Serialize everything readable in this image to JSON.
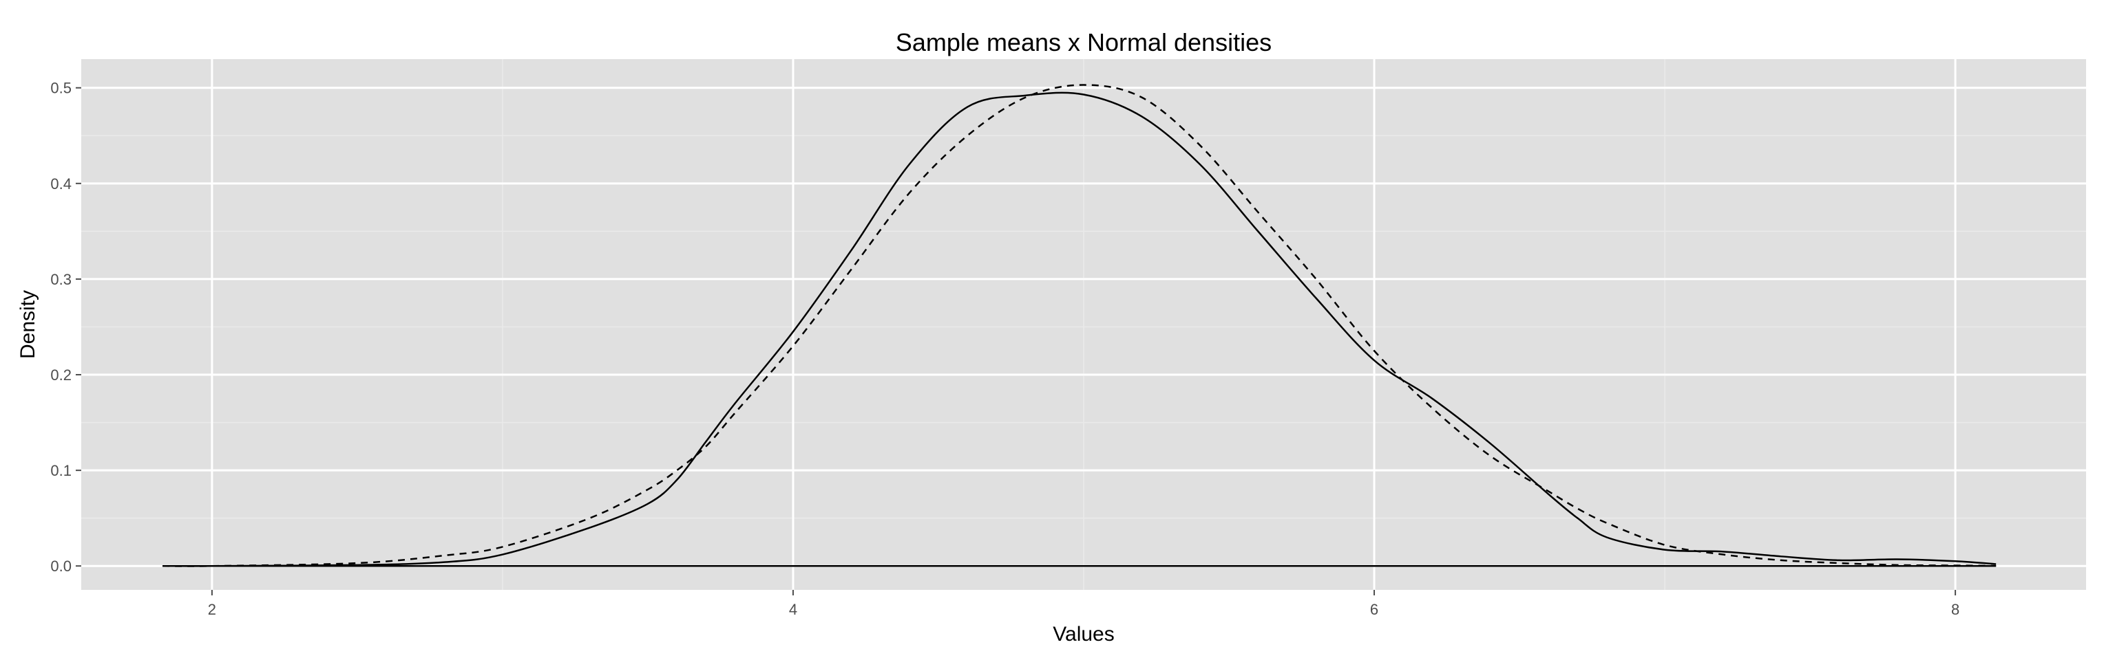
{
  "chart_data": {
    "type": "line",
    "title": "Sample means x Normal densities",
    "xlabel": "Values",
    "ylabel": "Density",
    "xlim": [
      1.55,
      8.45
    ],
    "ylim": [
      -0.025,
      0.53
    ],
    "x_ticks": [
      2,
      4,
      6,
      8
    ],
    "y_ticks": [
      0.0,
      0.1,
      0.2,
      0.3,
      0.4,
      0.5
    ],
    "y_tick_labels": [
      "0.0",
      "0.1",
      "0.2",
      "0.3",
      "0.4",
      "0.5"
    ],
    "grid": true,
    "background": "#e0e0e0",
    "series": [
      {
        "style": "solid",
        "color": "#000000",
        "x": [
          1.83,
          2.0,
          2.5,
          2.8,
          3.0,
          3.3,
          3.5,
          3.6,
          3.7,
          3.8,
          4.0,
          4.2,
          4.4,
          4.6,
          4.8,
          5.0,
          5.2,
          5.4,
          5.6,
          5.8,
          6.0,
          6.2,
          6.4,
          6.6,
          6.7,
          6.8,
          7.0,
          7.2,
          7.4,
          7.6,
          7.8,
          8.0,
          8.14
        ],
        "y": [
          0.0,
          0.0,
          0.001,
          0.004,
          0.012,
          0.04,
          0.065,
          0.09,
          0.13,
          0.17,
          0.245,
          0.33,
          0.42,
          0.48,
          0.492,
          0.493,
          0.47,
          0.42,
          0.35,
          0.28,
          0.215,
          0.175,
          0.128,
          0.075,
          0.05,
          0.03,
          0.017,
          0.015,
          0.01,
          0.006,
          0.007,
          0.005,
          0.002
        ]
      },
      {
        "style": "dashed",
        "color": "#000000",
        "x": [
          1.83,
          2.0,
          2.5,
          2.8,
          3.0,
          3.3,
          3.5,
          3.6,
          3.7,
          3.8,
          4.0,
          4.2,
          4.4,
          4.6,
          4.8,
          5.0,
          5.2,
          5.4,
          5.6,
          5.8,
          6.0,
          6.2,
          6.4,
          6.6,
          6.7,
          6.8,
          7.0,
          7.2,
          7.4,
          7.6,
          7.8,
          8.0,
          8.14
        ],
        "y": [
          0.0,
          0.0,
          0.003,
          0.011,
          0.02,
          0.05,
          0.08,
          0.1,
          0.125,
          0.16,
          0.23,
          0.31,
          0.39,
          0.45,
          0.49,
          0.503,
          0.49,
          0.44,
          0.37,
          0.3,
          0.225,
          0.165,
          0.115,
          0.078,
          0.06,
          0.045,
          0.022,
          0.012,
          0.006,
          0.003,
          0.001,
          0.0005,
          0.0002
        ]
      },
      {
        "style": "solid",
        "color": "#000000",
        "x": [
          1.83,
          8.14
        ],
        "y": [
          0.0,
          0.0
        ]
      }
    ]
  }
}
